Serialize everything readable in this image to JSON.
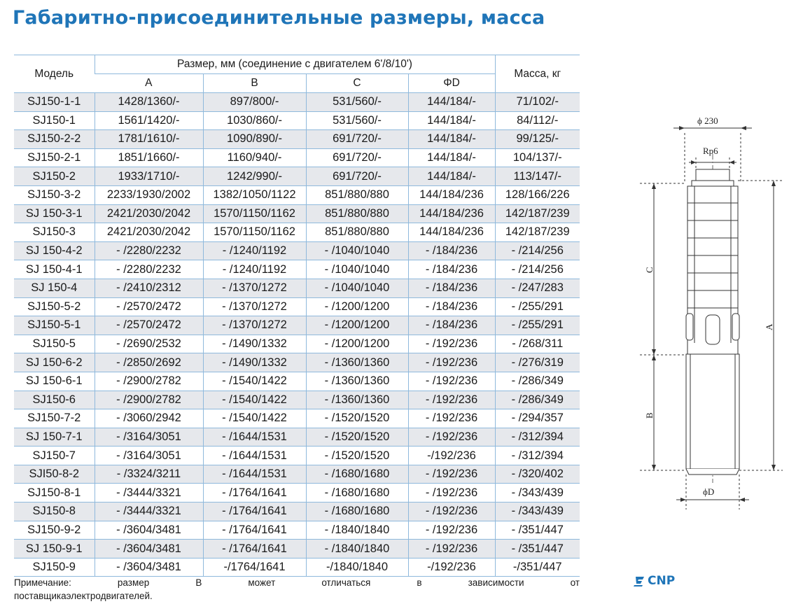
{
  "title": "Габаритно-присоединительные размеры, масса",
  "table": {
    "header_model": "Модель",
    "header_size": "Размер, мм (соединение с двигателем 6'/8/10')",
    "header_mass": "Масса, кг",
    "header_a": "A",
    "header_b": "B",
    "header_c": "C",
    "header_d": "ΦD",
    "rows": [
      [
        "SJ150-1-1",
        "1428/1360/-",
        "897/800/-",
        "531/560/-",
        "144/184/-",
        "71/102/-"
      ],
      [
        "SJ150-1",
        "1561/1420/-",
        "1030/860/-",
        "531/560/-",
        "144/184/-",
        "84/112/-"
      ],
      [
        "SJ150-2-2",
        "1781/1610/-",
        "1090/890/-",
        "691/720/-",
        "144/184/-",
        "99/125/-"
      ],
      [
        "SJ150-2-1",
        "1851/1660/-",
        "1160/940/-",
        "691/720/-",
        "144/184/-",
        "104/137/-"
      ],
      [
        "SJ150-2",
        "1933/1710/-",
        "1242/990/-",
        "691/720/-",
        "144/184/-",
        "113/147/-"
      ],
      [
        "SJ150-3-2",
        "2233/1930/2002",
        "1382/1050/1122",
        "851/880/880",
        "144/184/236",
        "128/166/226"
      ],
      [
        "SJ 150-3-1",
        "2421/2030/2042",
        "1570/1150/1162",
        "851/880/880",
        "144/184/236",
        "142/187/239"
      ],
      [
        "SJ150-3",
        "2421/2030/2042",
        "1570/1150/1162",
        "851/880/880",
        "144/184/236",
        "142/187/239"
      ],
      [
        "SJ 150-4-2",
        "- /2280/2232",
        "- /1240/1192",
        "- /1040/1040",
        "- /184/236",
        "- /214/256"
      ],
      [
        "SJ 150-4-1",
        "- /2280/2232",
        "- /1240/1192",
        "- /1040/1040",
        "- /184/236",
        "- /214/256"
      ],
      [
        "SJ 150-4",
        "- /2410/2312",
        "- /1370/1272",
        "- /1040/1040",
        "- /184/236",
        "- /247/283"
      ],
      [
        "SJ150-5-2",
        "- /2570/2472",
        "- /1370/1272",
        "- /1200/1200",
        "- /184/236",
        "- /255/291"
      ],
      [
        "SJ150-5-1",
        "- /2570/2472",
        "- /1370/1272",
        "- /1200/1200",
        "- /184/236",
        "- /255/291"
      ],
      [
        "SJ150-5",
        "-    /2690/2532",
        "- /1490/1332",
        "- /1200/1200",
        "- /192/236",
        "- /268/311"
      ],
      [
        "SJ 150-6-2",
        "-    /2850/2692",
        "- /1490/1332",
        "- /1360/1360",
        "- /192/236",
        "- /276/319"
      ],
      [
        "SJ 150-6-1",
        "-    /2900/2782",
        "- /1540/1422",
        "- /1360/1360",
        "- /192/236",
        "- /286/349"
      ],
      [
        "SJ150-6",
        "-    /2900/2782",
        "- /1540/1422",
        "- /1360/1360",
        "- /192/236",
        "- /286/349"
      ],
      [
        "SJ150-7-2",
        "-    /3060/2942",
        "- /1540/1422",
        "- /1520/1520",
        "- /192/236",
        "- /294/357"
      ],
      [
        "SJ 150-7-1",
        "- /3164/3051",
        "- /1644/1531",
        "- /1520/1520",
        "- /192/236",
        "- /312/394"
      ],
      [
        "SJ150-7",
        "- /3164/3051",
        "- /1644/1531",
        "- /1520/1520",
        "-/192/236",
        "- /312/394"
      ],
      [
        "SJI50-8-2",
        "- /3324/3211",
        "- /1644/1531",
        "- /1680/1680",
        "- /192/236",
        "- /320/402"
      ],
      [
        "SJ150-8-1",
        "- /3444/3321",
        "- /1764/1641",
        "- /1680/1680",
        "- /192/236",
        "- /343/439"
      ],
      [
        "SJ150-8",
        "- /3444/3321",
        "- /1764/1641",
        "- /1680/1680",
        "- /192/236",
        "- /343/439"
      ],
      [
        "SJ150-9-2",
        "- /3604/3481",
        "- /1764/1641",
        "- /1840/1840",
        "- /192/236",
        "- /351/447"
      ],
      [
        "SJ 150-9-1",
        "- /3604/3481",
        "- /1764/1641",
        "- /1840/1840",
        "- /192/236",
        "- /351/447"
      ],
      [
        "SJ150-9",
        "- /3604/3481",
        "-/1764/1641",
        "-/1840/1840",
        "-/192/236",
        "-/351/447"
      ]
    ]
  },
  "note": {
    "words": [
      "Примечание:",
      "размер",
      "B",
      "может",
      "отличаться",
      "в",
      "зависимости",
      "от"
    ],
    "line2": "поставщикаэлектродвигателей."
  },
  "drawing": {
    "phi230": "ϕ 230",
    "rp6": "Rp6",
    "dim_c": "C",
    "dim_b": "B",
    "dim_a": "A",
    "phi_d": "ϕD"
  },
  "logo": {
    "text": "CNP"
  },
  "colors": {
    "title": "#1f75b8",
    "rule": "#8fb9dc",
    "row_shade": "#e6e8ec"
  }
}
